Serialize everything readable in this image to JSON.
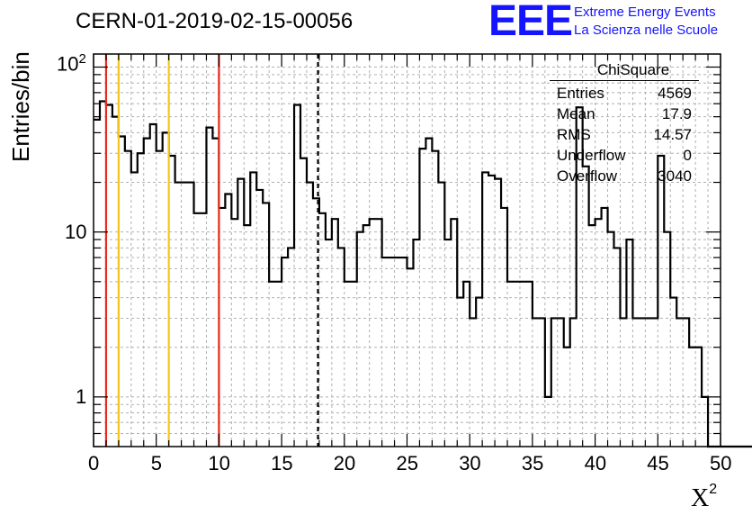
{
  "header": {
    "title": "CERN-01-2019-02-15-00056",
    "logo_text": "EEE",
    "logo_line1": "Extreme Energy Events",
    "logo_line2": "La Scienza nelle Scuole"
  },
  "axes": {
    "ylabel": "Entries/bin",
    "xlabel_base": "X",
    "xlabel_sup": "2"
  },
  "stats_box": {
    "title": "ChiSquare",
    "rows": [
      {
        "label": "Entries",
        "value": "4569"
      },
      {
        "label": "Mean",
        "value": "17.9"
      },
      {
        "label": "RMS",
        "value": "14.57"
      },
      {
        "label": "Underflow",
        "value": "0"
      },
      {
        "label": "Overflow",
        "value": "3040"
      }
    ]
  },
  "colors": {
    "red_line": "#e8291c",
    "yellow_line": "#f5c518",
    "logo_blue": "#1414ff",
    "grid": "#b0b0b0"
  },
  "chart_data": {
    "type": "histogram",
    "title": "CERN-01-2019-02-15-00056",
    "xlabel": "X²",
    "ylabel": "Entries/bin",
    "xlim": [
      0,
      50
    ],
    "ylim": [
      0.5,
      120
    ],
    "y_scale": "log",
    "grid": true,
    "bin_width": 0.5,
    "x_ticks": [
      "0",
      "5",
      "10",
      "15",
      "20",
      "25",
      "30",
      "35",
      "40",
      "45",
      "50"
    ],
    "y_tick_labels": [
      "1",
      "10",
      "10²"
    ],
    "values": [
      48,
      62,
      59,
      50,
      38,
      31,
      23,
      30,
      37,
      45,
      31,
      40,
      29,
      20,
      20,
      20,
      13,
      13,
      43,
      37,
      14,
      17,
      12,
      21,
      11,
      23,
      18,
      15,
      5,
      5,
      7,
      8,
      59,
      28,
      20,
      16,
      13,
      9,
      12,
      8,
      5,
      5,
      10,
      11,
      12,
      12,
      7,
      7,
      7,
      7,
      6,
      9,
      32,
      37,
      31,
      20,
      9,
      12,
      4,
      5,
      3,
      4,
      23,
      22,
      21,
      14,
      5,
      5,
      5,
      5,
      3,
      3,
      1,
      3,
      3,
      2,
      3,
      57,
      25,
      11,
      12,
      14,
      10,
      8,
      3,
      9,
      3,
      3,
      3,
      3,
      29,
      10,
      4,
      3,
      3,
      2,
      2,
      1,
      0,
      0,
      0,
      0,
      0,
      0,
      0,
      0,
      0,
      0,
      0,
      0,
      0,
      0,
      0,
      0,
      0,
      0,
      0,
      0,
      0,
      0,
      0,
      0,
      0,
      0,
      0,
      0,
      0,
      0,
      0,
      0,
      0,
      0,
      0,
      0,
      0,
      0,
      0,
      0,
      0,
      0,
      0,
      0,
      0,
      0,
      0,
      0,
      0,
      0,
      0,
      0,
      0,
      0,
      0,
      0,
      0,
      0,
      0,
      0,
      0,
      0,
      0,
      0,
      0,
      0,
      0,
      0,
      0,
      0,
      0,
      0,
      0,
      0,
      0,
      0,
      0,
      0,
      0,
      0,
      0,
      0,
      0,
      0,
      0,
      0,
      0,
      0,
      0,
      0,
      0,
      0,
      0,
      0,
      0,
      0
    ],
    "markers": [
      {
        "x": 1,
        "color": "#e8291c",
        "style": "solid"
      },
      {
        "x": 2,
        "color": "#f5c518",
        "style": "solid"
      },
      {
        "x": 6,
        "color": "#f5c518",
        "style": "solid"
      },
      {
        "x": 10,
        "color": "#e8291c",
        "style": "solid"
      },
      {
        "x": 17.9,
        "color": "#000000",
        "style": "dashed"
      }
    ]
  }
}
